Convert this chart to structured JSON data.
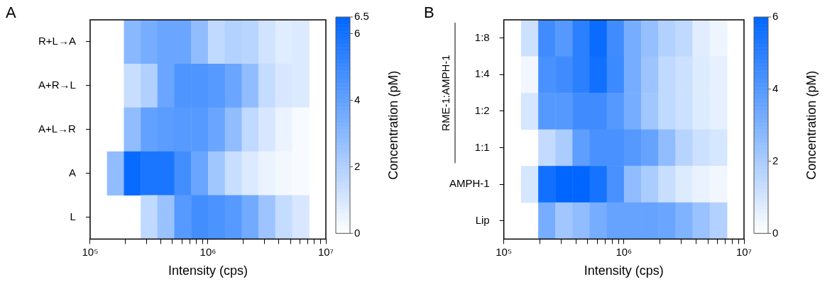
{
  "chart_data": [
    {
      "type": "heatmap",
      "title": "A",
      "xlabel": "Intensity (cps)",
      "clabel": "Concentration (pM)",
      "log": "x",
      "x": [
        164000,
        228000,
        316000,
        439000,
        611000,
        848000,
        1180000,
        1640000,
        2280000,
        3160000,
        4390000,
        6110000
      ],
      "y_categories": [
        "R+L→A",
        "A+R→L",
        "A+L→R",
        "A",
        "L"
      ],
      "cells": [
        [
          null,
          3.0,
          3.5,
          3.8,
          3.8,
          2.8,
          1.6,
          1.9,
          1.8,
          1.2,
          0.8,
          0.9
        ],
        [
          null,
          1.4,
          2.0,
          3.8,
          4.5,
          4.5,
          4.3,
          3.8,
          2.8,
          1.5,
          1.0,
          0.9
        ],
        [
          null,
          2.8,
          4.0,
          4.2,
          4.3,
          4.3,
          3.8,
          2.8,
          1.6,
          1.0,
          0.5,
          0.2
        ],
        [
          2.8,
          6.3,
          5.8,
          5.8,
          4.8,
          3.8,
          2.4,
          1.4,
          0.9,
          0.5,
          0.3,
          0.2
        ],
        [
          null,
          null,
          1.6,
          2.6,
          4.3,
          4.8,
          4.6,
          4.3,
          3.6,
          2.5,
          1.5,
          1.0
        ]
      ],
      "xlim": [
        100000,
        10000000
      ],
      "xticks": [
        {
          "value": 100000,
          "label": "10⁵"
        },
        {
          "value": 200000,
          "label": null
        },
        {
          "value": 300000,
          "label": null
        },
        {
          "value": 400000,
          "label": null
        },
        {
          "value": 500000,
          "label": null
        },
        {
          "value": 600000,
          "label": null
        },
        {
          "value": 700000,
          "label": null
        },
        {
          "value": 800000,
          "label": null
        },
        {
          "value": 900000,
          "label": null
        },
        {
          "value": 1000000,
          "label": "10⁶"
        },
        {
          "value": 2000000,
          "label": null
        },
        {
          "value": 3000000,
          "label": null
        },
        {
          "value": 4000000,
          "label": null
        },
        {
          "value": 5000000,
          "label": null
        },
        {
          "value": 6000000,
          "label": null
        },
        {
          "value": 7000000,
          "label": null
        },
        {
          "value": 8000000,
          "label": null
        },
        {
          "value": 9000000,
          "label": null
        },
        {
          "value": 10000000,
          "label": "10⁷"
        }
      ],
      "clim": [
        0,
        6.5
      ],
      "cticks": [
        0,
        2,
        4,
        6,
        6.5
      ]
    },
    {
      "type": "heatmap",
      "title": "B",
      "xlabel": "Intensity (cps)",
      "ylabel": "RME-1:AMPH-1",
      "clabel": "Concentration (pM)",
      "log": "x",
      "x": [
        164000,
        228000,
        316000,
        439000,
        611000,
        848000,
        1180000,
        1640000,
        2280000,
        3160000,
        4390000,
        6110000
      ],
      "y_categories": [
        "1:8",
        "1:4",
        "1:2",
        "1:1",
        "AMPH-1",
        "Lip"
      ],
      "cells": [
        [
          1.2,
          4.5,
          4.0,
          5.0,
          5.8,
          4.5,
          3.2,
          2.5,
          1.8,
          1.5,
          0.7,
          0.4
        ],
        [
          0.3,
          4.3,
          4.5,
          5.0,
          5.6,
          4.6,
          3.2,
          2.3,
          1.5,
          1.2,
          0.8,
          0.6
        ],
        [
          1.0,
          4.0,
          4.0,
          4.5,
          4.5,
          4.0,
          3.2,
          2.2,
          1.5,
          1.2,
          0.8,
          0.6
        ],
        [
          null,
          1.4,
          2.0,
          3.8,
          4.3,
          4.3,
          4.0,
          3.6,
          2.6,
          1.7,
          1.2,
          1.0
        ],
        [
          1.0,
          5.6,
          6.0,
          6.0,
          5.5,
          4.3,
          2.6,
          2.0,
          1.3,
          0.8,
          0.5,
          0.3
        ],
        [
          null,
          3.2,
          2.2,
          2.6,
          3.2,
          3.6,
          3.6,
          3.6,
          3.5,
          3.0,
          2.4,
          1.8
        ]
      ],
      "xlim": [
        100000,
        10000000
      ],
      "xticks": [
        {
          "value": 100000,
          "label": "10⁵"
        },
        {
          "value": 200000,
          "label": null
        },
        {
          "value": 300000,
          "label": null
        },
        {
          "value": 400000,
          "label": null
        },
        {
          "value": 500000,
          "label": null
        },
        {
          "value": 600000,
          "label": null
        },
        {
          "value": 700000,
          "label": null
        },
        {
          "value": 800000,
          "label": null
        },
        {
          "value": 900000,
          "label": null
        },
        {
          "value": 1000000,
          "label": "10⁶"
        },
        {
          "value": 2000000,
          "label": null
        },
        {
          "value": 3000000,
          "label": null
        },
        {
          "value": 4000000,
          "label": null
        },
        {
          "value": 5000000,
          "label": null
        },
        {
          "value": 6000000,
          "label": null
        },
        {
          "value": 7000000,
          "label": null
        },
        {
          "value": 8000000,
          "label": null
        },
        {
          "value": 9000000,
          "label": null
        },
        {
          "value": 10000000,
          "label": "10⁷"
        }
      ],
      "clim": [
        0,
        6
      ],
      "cticks": [
        0,
        2,
        4,
        6
      ]
    }
  ]
}
